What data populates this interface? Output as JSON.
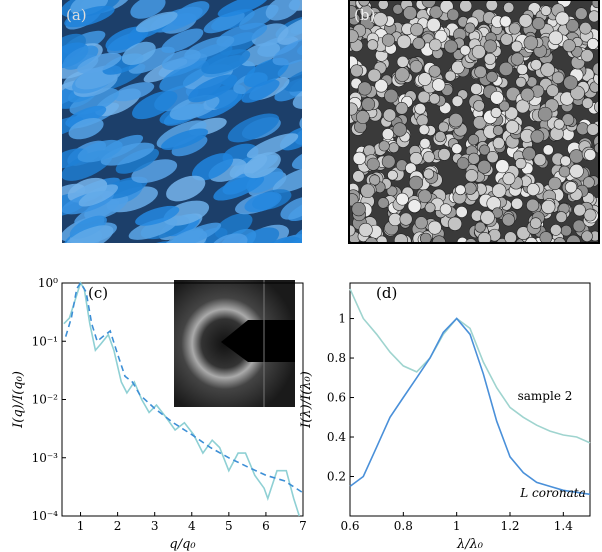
{
  "panels": {
    "a": "(a)",
    "b": "(b)"
  },
  "chart_data": [
    {
      "type": "line",
      "panel_label": "(c)",
      "xlabel": "q/q₀",
      "ylabel": "I(q)/I(q₀)",
      "log_y": true,
      "xlim": [
        0.5,
        7
      ],
      "xticks": [
        1,
        2,
        3,
        4,
        5,
        6,
        7
      ],
      "ylim": [
        0.0001,
        1
      ],
      "yticks": [
        {
          "value": 0.0001,
          "label": "10⁻⁴"
        },
        {
          "value": 0.001,
          "label": "10⁻³"
        },
        {
          "value": 0.01,
          "label": "10⁻²"
        },
        {
          "value": 0.1,
          "label": "10⁻¹"
        },
        {
          "value": 1,
          "label": "10⁰"
        }
      ],
      "series": [
        {
          "color": "#8fd0d4",
          "dash": false,
          "x": [
            0.55,
            0.7,
            0.85,
            1.0,
            1.1,
            1.25,
            1.4,
            1.55,
            1.75,
            1.9,
            2.1,
            2.25,
            2.45,
            2.65,
            2.85,
            3.05,
            3.3,
            3.55,
            3.8,
            4.05,
            4.3,
            4.55,
            4.75,
            5.0,
            5.25,
            5.45,
            5.7,
            5.95,
            6.05,
            6.3,
            6.55,
            6.75,
            6.9
          ],
          "values": [
            0.2,
            0.25,
            0.5,
            1.0,
            0.8,
            0.2,
            0.07,
            0.09,
            0.13,
            0.07,
            0.02,
            0.013,
            0.02,
            0.01,
            0.006,
            0.008,
            0.005,
            0.003,
            0.004,
            0.0025,
            0.0012,
            0.002,
            0.0015,
            0.0006,
            0.0012,
            0.0012,
            0.0005,
            0.0003,
            0.0002,
            0.0006,
            0.0006,
            0.0002,
            0.0001
          ]
        },
        {
          "color": "#3d8fd6",
          "dash": true,
          "x": [
            0.6,
            0.75,
            0.9,
            1.0,
            1.15,
            1.3,
            1.45,
            1.6,
            1.8,
            2.0,
            2.2,
            2.4,
            2.6,
            3.0,
            3.5,
            4.0,
            4.5,
            5.0,
            5.5,
            6.0,
            6.5,
            7.0
          ],
          "values": [
            0.12,
            0.25,
            0.8,
            1.0,
            0.7,
            0.2,
            0.1,
            0.12,
            0.15,
            0.06,
            0.025,
            0.02,
            0.012,
            0.007,
            0.004,
            0.0025,
            0.0015,
            0.001,
            0.0007,
            0.0005,
            0.0004,
            0.00025
          ]
        }
      ]
    },
    {
      "type": "line",
      "panel_label": "(d)",
      "xlabel": "λ/λ₀",
      "ylabel": "I(λ)/I(λ₀)",
      "log_y": false,
      "xlim": [
        0.6,
        1.5
      ],
      "xticks": [
        0.6,
        0.8,
        1,
        1.2,
        1.4
      ],
      "ylim": [
        0,
        1.18
      ],
      "yticks": [
        0.2,
        0.4,
        0.6,
        0.8,
        1
      ],
      "series": [
        {
          "name": "sample 2",
          "color": "#9fd4cf",
          "dash": false,
          "x": [
            0.6,
            0.65,
            0.7,
            0.75,
            0.8,
            0.85,
            0.9,
            0.95,
            1.0,
            1.05,
            1.1,
            1.15,
            1.2,
            1.25,
            1.3,
            1.35,
            1.4,
            1.45,
            1.5
          ],
          "values": [
            1.15,
            1.0,
            0.92,
            0.83,
            0.76,
            0.73,
            0.8,
            0.92,
            1.0,
            0.95,
            0.78,
            0.65,
            0.55,
            0.5,
            0.46,
            0.43,
            0.41,
            0.4,
            0.37
          ]
        },
        {
          "name": "L coronata",
          "color": "#4a90d9",
          "dash": false,
          "x": [
            0.6,
            0.65,
            0.7,
            0.75,
            0.8,
            0.85,
            0.9,
            0.95,
            1.0,
            1.05,
            1.1,
            1.15,
            1.2,
            1.25,
            1.3,
            1.35,
            1.4,
            1.45,
            1.5
          ],
          "values": [
            0.15,
            0.2,
            0.35,
            0.5,
            0.6,
            0.7,
            0.8,
            0.93,
            1.0,
            0.92,
            0.72,
            0.48,
            0.3,
            0.22,
            0.17,
            0.15,
            0.13,
            0.12,
            0.11
          ]
        }
      ]
    }
  ]
}
